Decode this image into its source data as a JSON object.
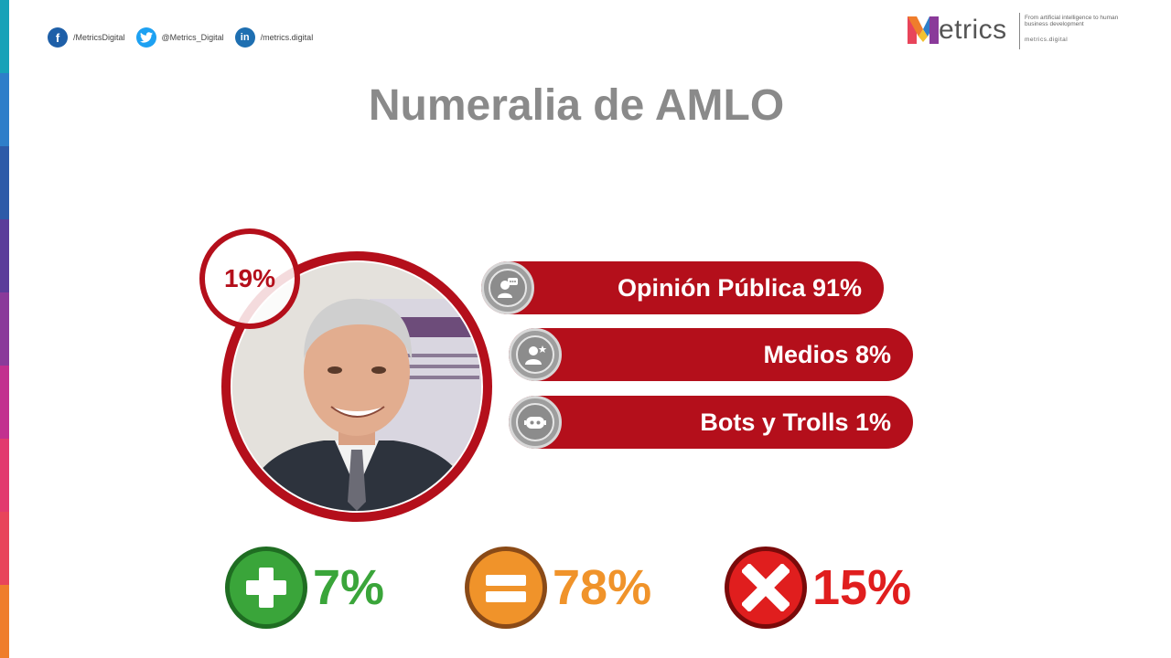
{
  "social": [
    {
      "icon": "facebook-icon",
      "glyph": "f",
      "handle": "/MetricsDigital"
    },
    {
      "icon": "twitter-icon",
      "glyph": "t",
      "handle": "@Metrics_Digital"
    },
    {
      "icon": "linkedin-icon",
      "glyph": "in",
      "handle": "/metrics.digital"
    }
  ],
  "logo": {
    "letter": "M",
    "word": "etrics",
    "tagline": "From artificial intelligence to human business development",
    "url": "metrics.digital"
  },
  "title": "Numeralia de AMLO",
  "photo_badge": "19%",
  "bars": [
    {
      "icon": "opinion-chat-icon",
      "label": "Opinión Pública 91%"
    },
    {
      "icon": "media-user-star-icon",
      "label": "Medios 8%"
    },
    {
      "icon": "bot-icon",
      "label": "Bots y Trolls 1%"
    }
  ],
  "sentiment": [
    {
      "icon": "plus-icon",
      "value": "7%",
      "color": "#3aa53a"
    },
    {
      "icon": "equals-icon",
      "value": "78%",
      "color": "#f0932a"
    },
    {
      "icon": "x-icon",
      "value": "15%",
      "color": "#e01e1e"
    }
  ],
  "colors": {
    "accent_red": "#b40f1b",
    "title_gray": "#8a8a8a",
    "strip": [
      "#17a2b8",
      "#2e7ec9",
      "#2d5aa8",
      "#5b3c9a",
      "#8a3a9a",
      "#c2308f",
      "#e23a6e",
      "#e8445a",
      "#ef7d2c"
    ]
  }
}
